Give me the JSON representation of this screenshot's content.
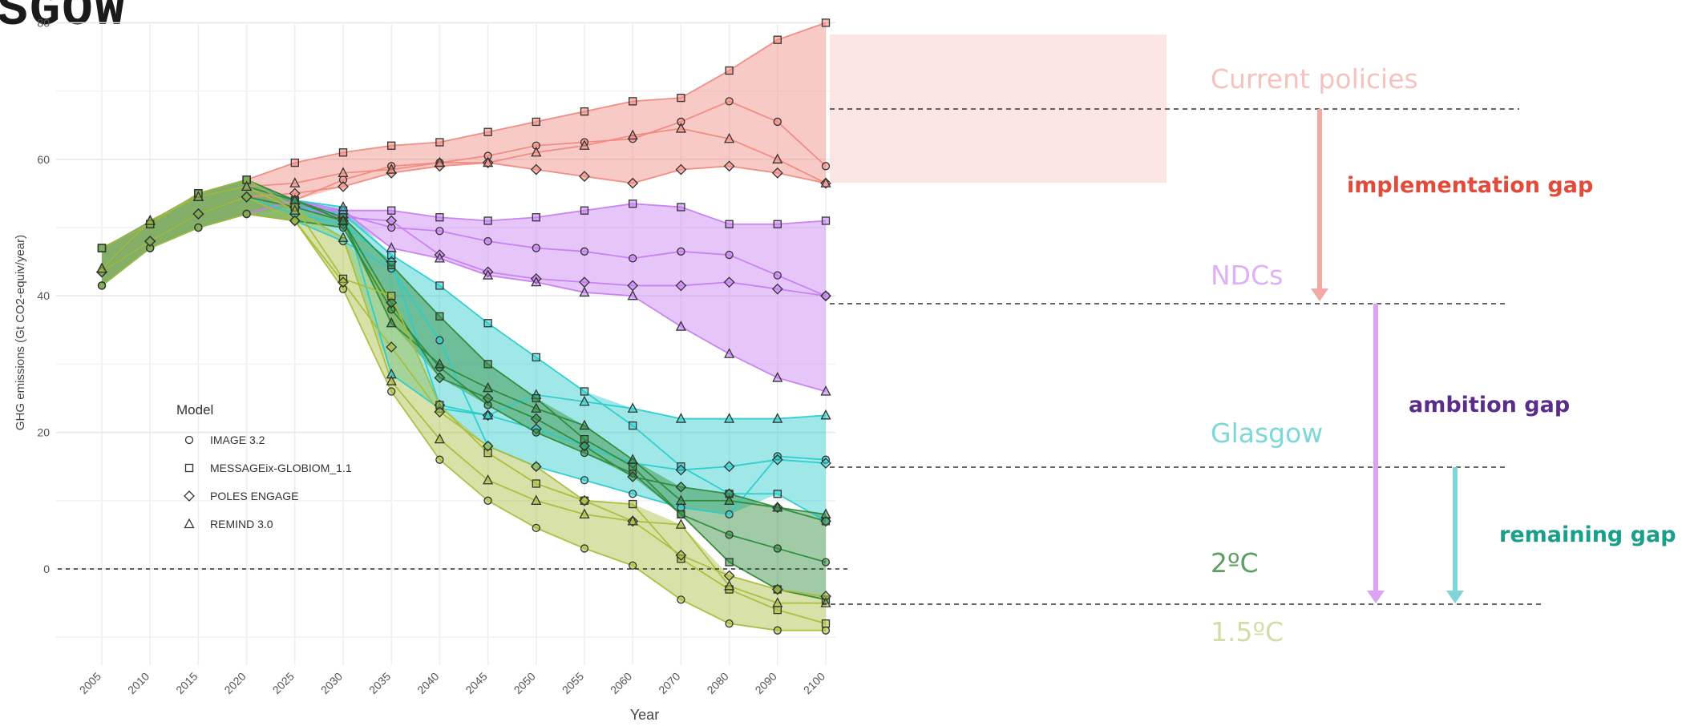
{
  "page_title": "ASGOW",
  "chart_data": {
    "type": "line",
    "title": "",
    "xlabel": "Year",
    "ylabel": "GHG emissions (Gt CO2-equiv/year)",
    "x": [
      "2005",
      "2010",
      "2015",
      "2020",
      "2025",
      "2030",
      "2035",
      "2040",
      "2045",
      "2050",
      "2055",
      "2060",
      "2070",
      "2080",
      "2090",
      "2100"
    ],
    "yticks": [
      0,
      20,
      40,
      60
    ],
    "top_tick_label": "80",
    "ylim": [
      -11,
      80
    ],
    "grid": true,
    "legend": {
      "title": "Model",
      "placement": "left-center",
      "entries": [
        {
          "label": "IMAGE 3.2",
          "marker": "circle"
        },
        {
          "label": "MESSAGEix-GLOBIOM_1.1",
          "marker": "square"
        },
        {
          "label": "POLES ENGAGE",
          "marker": "diamond"
        },
        {
          "label": "REMIND 3.0",
          "marker": "triangle"
        }
      ]
    },
    "groups": [
      {
        "label": "Current policies",
        "color": "#f08a80",
        "series": [
          {
            "marker": "circle",
            "values": [
              41.5,
              47,
              50,
              52,
              54,
              57,
              59,
              59.5,
              60.5,
              62,
              62.5,
              63,
              65.5,
              68.5,
              65.5,
              59
            ]
          },
          {
            "marker": "square",
            "values": [
              47,
              50.5,
              55,
              57,
              59.5,
              61,
              62,
              62.5,
              64,
              65.5,
              67,
              68.5,
              69,
              73,
              77.5,
              80
            ]
          },
          {
            "marker": "diamond",
            "values": [
              43.5,
              48,
              52,
              54.5,
              55,
              56,
              58,
              59,
              59.5,
              58.5,
              57.5,
              56.5,
              58.5,
              59,
              58,
              56.5
            ]
          },
          {
            "marker": "triangle",
            "values": [
              44,
              51,
              54.5,
              56,
              56.5,
              58,
              58.5,
              59.5,
              59.5,
              61,
              62,
              63.5,
              64.5,
              63,
              60,
              56.5
            ]
          }
        ]
      },
      {
        "label": "NDCs",
        "color": "#c77ef2",
        "series": [
          {
            "marker": "circle",
            "values": [
              41.5,
              47,
              50,
              52,
              54,
              52,
              50,
              49.5,
              48,
              47,
              46.5,
              45.5,
              46.5,
              46,
              43,
              40
            ]
          },
          {
            "marker": "square",
            "values": [
              47,
              50.5,
              55,
              57,
              53,
              52.5,
              52.5,
              51.5,
              51,
              51.5,
              52.5,
              53.5,
              53,
              50.5,
              50.5,
              51
            ]
          },
          {
            "marker": "diamond",
            "values": [
              43.5,
              48,
              52,
              54.5,
              53,
              51.5,
              51,
              46,
              43.5,
              42.5,
              42,
              41.5,
              41.5,
              42,
              41,
              40
            ]
          },
          {
            "marker": "triangle",
            "values": [
              44,
              51,
              54.5,
              56,
              54,
              52.5,
              47,
              45.5,
              43,
              42,
              40.5,
              40,
              35.5,
              31.5,
              28,
              26
            ]
          }
        ]
      },
      {
        "label": "Glasgow",
        "color": "#2ccccc",
        "series": [
          {
            "marker": "circle",
            "values": [
              41.5,
              47,
              50,
              52,
              51,
              48,
              44,
              33.5,
              18,
              15,
              13,
              11,
              9,
              8,
              16.5,
              16
            ]
          },
          {
            "marker": "square",
            "values": [
              47,
              50.5,
              55,
              57,
              53,
              52,
              46,
              41.5,
              36,
              31,
              26,
              21,
              15,
              11,
              11,
              7
            ]
          },
          {
            "marker": "diamond",
            "values": [
              43.5,
              48,
              52,
              54.5,
              52,
              50.5,
              45,
              24,
              22.5,
              20.5,
              18,
              15.5,
              14.5,
              15,
              16,
              15.5
            ]
          },
          {
            "marker": "triangle",
            "values": [
              44,
              51,
              54.5,
              56,
              54,
              53,
              28.5,
              23.5,
              22.5,
              25.5,
              24.5,
              23.5,
              22,
              22,
              22,
              22.5
            ]
          }
        ]
      },
      {
        "label": "2ºC",
        "color": "#2e8b3a",
        "series": [
          {
            "marker": "circle",
            "values": [
              41.5,
              47,
              50,
              52,
              51,
              50,
              38,
              29.5,
              24,
              20,
              17,
              14,
              8,
              5,
              3,
              1
            ]
          },
          {
            "marker": "square",
            "values": [
              47,
              50.5,
              55,
              57,
              54,
              51.5,
              44.5,
              37,
              30,
              25,
              19,
              15,
              8,
              1,
              -3,
              -4.5
            ]
          },
          {
            "marker": "diamond",
            "values": [
              43.5,
              48,
              52,
              54.5,
              53,
              51,
              39,
              28,
              25,
              22,
              18,
              13.5,
              12,
              11,
              9,
              7
            ]
          },
          {
            "marker": "triangle",
            "values": [
              44,
              51,
              54.5,
              56,
              54,
              51,
              36,
              30,
              26.5,
              23.5,
              21,
              16,
              10,
              10,
              9,
              8
            ]
          }
        ]
      },
      {
        "label": "1.5ºC",
        "color": "#a9bd3c",
        "series": [
          {
            "marker": "circle",
            "values": [
              41.5,
              47,
              50,
              52,
              51,
              41,
              26,
              16,
              10,
              6,
              3,
              0.5,
              -4.5,
              -8,
              -9,
              -9
            ]
          },
          {
            "marker": "square",
            "values": [
              47,
              50.5,
              55,
              57,
              53,
              42.5,
              40,
              24,
              17,
              12.5,
              10,
              9.5,
              1.5,
              -3,
              -6,
              -8
            ]
          },
          {
            "marker": "diamond",
            "values": [
              43.5,
              48,
              52,
              54.5,
              51,
              42,
              32.5,
              23,
              18,
              15,
              10,
              7,
              2,
              -1,
              -3,
              -4
            ]
          },
          {
            "marker": "triangle",
            "values": [
              44,
              51,
              54.5,
              56,
              52.5,
              48.5,
              27.5,
              19,
              13,
              10,
              8,
              7,
              6.5,
              -2.5,
              -5,
              -5
            ]
          }
        ]
      }
    ],
    "reference_lines": [
      {
        "y": 0,
        "label": "dotted zero line"
      }
    ],
    "annotations": [
      {
        "text": "Current policies",
        "color": "#f6c2bd"
      },
      {
        "text": "NDCs",
        "color": "#deb0f7"
      },
      {
        "text": "Glasgow",
        "color": "#7ed8d8"
      },
      {
        "text": "2ºC",
        "color": "#5d9e63"
      },
      {
        "text": "1.5ºC",
        "color": "#d5dca6"
      },
      {
        "text": "implementation gap",
        "color": "#e24a3a"
      },
      {
        "text": "ambition gap",
        "color": "#5a2d8a"
      },
      {
        "text": "remaining gap",
        "color": "#1aa08a"
      }
    ]
  }
}
